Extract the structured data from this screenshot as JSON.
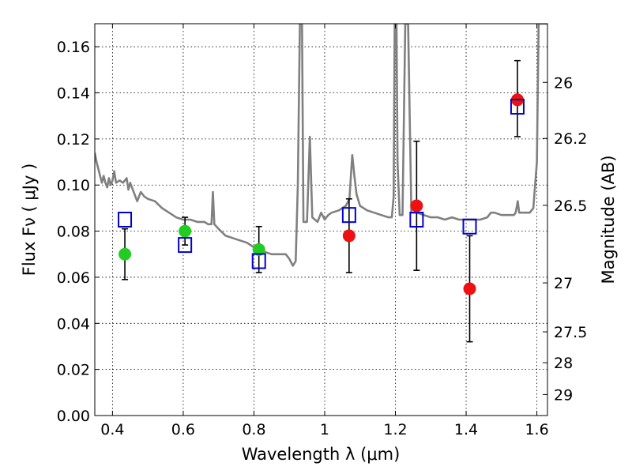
{
  "chart_data": {
    "type": "scatter",
    "xlabel": "Wavelength  λ (μm)",
    "ylabel": "Flux  Fν  ( μJy )",
    "y2label": "Magnitude (AB)",
    "xlim": [
      0.35,
      1.63
    ],
    "ylim": [
      0.0,
      0.17
    ],
    "x_ticks": [
      0.4,
      0.6,
      0.8,
      1.0,
      1.2,
      1.4,
      1.6
    ],
    "x_tick_labels": [
      "0.4",
      "0.6",
      "0.8",
      "1",
      "1.2",
      "1.4",
      "1.6"
    ],
    "y_ticks": [
      0.0,
      0.02,
      0.04,
      0.06,
      0.08,
      0.1,
      0.12,
      0.14,
      0.16
    ],
    "y_tick_labels": [
      "0.00",
      "0.02",
      "0.04",
      "0.06",
      "0.08",
      "0.10",
      "0.12",
      "0.14",
      "0.16"
    ],
    "mag_ticks": [
      26,
      26.2,
      26.5,
      27,
      27.5,
      28,
      29
    ],
    "mag_tick_labels": [
      "26",
      "26.2",
      "26.5",
      "27",
      "27.5",
      "28",
      "29"
    ],
    "grid": true,
    "colors": {
      "model": "#808080",
      "measured_green": "#22cc22",
      "measured_red": "#ee1111",
      "model_photometry": "#0000cc",
      "errorbar": "#000000"
    },
    "series": [
      {
        "kind": "points",
        "x": [
          0.435,
          0.605,
          0.814
        ],
        "y": [
          0.07,
          0.08,
          0.072
        ],
        "yerr_low": [
          0.011,
          0.006,
          0.01
        ],
        "yerr_high": [
          0.011,
          0.006,
          0.01
        ],
        "color_key": "measured_green"
      },
      {
        "kind": "points",
        "x": [
          1.069,
          1.26,
          1.41,
          1.545
        ],
        "y": [
          0.078,
          0.091,
          0.055,
          0.137
        ],
        "yerr_low": [
          0.016,
          0.028,
          0.023,
          0.016
        ],
        "yerr_high": [
          0.016,
          0.028,
          0.023,
          0.017
        ],
        "color_key": "measured_red"
      },
      {
        "kind": "open-squares",
        "x": [
          0.435,
          0.605,
          0.814,
          1.069,
          1.26,
          1.41,
          1.545
        ],
        "y": [
          0.085,
          0.074,
          0.067,
          0.087,
          0.085,
          0.082,
          0.134
        ],
        "color_key": "model_photometry"
      },
      {
        "kind": "line",
        "color_key": "model",
        "points": [
          [
            0.35,
            0.114
          ],
          [
            0.355,
            0.11
          ],
          [
            0.36,
            0.107
          ],
          [
            0.365,
            0.104
          ],
          [
            0.37,
            0.101
          ],
          [
            0.375,
            0.104
          ],
          [
            0.38,
            0.101
          ],
          [
            0.385,
            0.099
          ],
          [
            0.39,
            0.103
          ],
          [
            0.395,
            0.1
          ],
          [
            0.4,
            0.102
          ],
          [
            0.405,
            0.106
          ],
          [
            0.41,
            0.101
          ],
          [
            0.42,
            0.102
          ],
          [
            0.43,
            0.101
          ],
          [
            0.44,
            0.103
          ],
          [
            0.445,
            0.098
          ],
          [
            0.45,
            0.101
          ],
          [
            0.46,
            0.097
          ],
          [
            0.47,
            0.093
          ],
          [
            0.48,
            0.097
          ],
          [
            0.49,
            0.095
          ],
          [
            0.5,
            0.094
          ],
          [
            0.52,
            0.093
          ],
          [
            0.54,
            0.09
          ],
          [
            0.56,
            0.088
          ],
          [
            0.58,
            0.086
          ],
          [
            0.6,
            0.085
          ],
          [
            0.62,
            0.085
          ],
          [
            0.64,
            0.084
          ],
          [
            0.66,
            0.084
          ],
          [
            0.67,
            0.083
          ],
          [
            0.68,
            0.083
          ],
          [
            0.684,
            0.097
          ],
          [
            0.688,
            0.083
          ],
          [
            0.7,
            0.081
          ],
          [
            0.72,
            0.078
          ],
          [
            0.74,
            0.077
          ],
          [
            0.76,
            0.076
          ],
          [
            0.78,
            0.075
          ],
          [
            0.8,
            0.073
          ],
          [
            0.81,
            0.072
          ],
          [
            0.82,
            0.073
          ],
          [
            0.83,
            0.071
          ],
          [
            0.85,
            0.07
          ],
          [
            0.87,
            0.07
          ],
          [
            0.89,
            0.07
          ],
          [
            0.9,
            0.068
          ],
          [
            0.91,
            0.065
          ],
          [
            0.918,
            0.067
          ],
          [
            0.924,
            0.1
          ],
          [
            0.93,
            0.17
          ],
          [
            0.936,
            0.17
          ],
          [
            0.94,
            0.084
          ],
          [
            0.95,
            0.084
          ],
          [
            0.958,
            0.121
          ],
          [
            0.965,
            0.086
          ],
          [
            0.98,
            0.084
          ],
          [
            0.99,
            0.088
          ],
          [
            1.0,
            0.085
          ],
          [
            1.01,
            0.087
          ],
          [
            1.02,
            0.088
          ],
          [
            1.04,
            0.089
          ],
          [
            1.06,
            0.091
          ],
          [
            1.07,
            0.094
          ],
          [
            1.078,
            0.113
          ],
          [
            1.084,
            0.104
          ],
          [
            1.09,
            0.096
          ],
          [
            1.1,
            0.091
          ],
          [
            1.12,
            0.089
          ],
          [
            1.14,
            0.088
          ],
          [
            1.16,
            0.087
          ],
          [
            1.18,
            0.086
          ],
          [
            1.19,
            0.086
          ],
          [
            1.195,
            0.095
          ],
          [
            1.198,
            0.17
          ],
          [
            1.203,
            0.17
          ],
          [
            1.206,
            0.11
          ],
          [
            1.212,
            0.087
          ],
          [
            1.22,
            0.087
          ],
          [
            1.228,
            0.17
          ],
          [
            1.236,
            0.17
          ],
          [
            1.245,
            0.088
          ],
          [
            1.26,
            0.088
          ],
          [
            1.28,
            0.087
          ],
          [
            1.3,
            0.086
          ],
          [
            1.32,
            0.086
          ],
          [
            1.34,
            0.085
          ],
          [
            1.36,
            0.086
          ],
          [
            1.38,
            0.085
          ],
          [
            1.4,
            0.085
          ],
          [
            1.42,
            0.085
          ],
          [
            1.44,
            0.085
          ],
          [
            1.46,
            0.086
          ],
          [
            1.47,
            0.088
          ],
          [
            1.48,
            0.088
          ],
          [
            1.5,
            0.087
          ],
          [
            1.52,
            0.087
          ],
          [
            1.535,
            0.087
          ],
          [
            1.54,
            0.088
          ],
          [
            1.546,
            0.093
          ],
          [
            1.55,
            0.088
          ],
          [
            1.56,
            0.088
          ],
          [
            1.58,
            0.088
          ],
          [
            1.59,
            0.09
          ],
          [
            1.6,
            0.11
          ],
          [
            1.605,
            0.17
          ],
          [
            1.63,
            0.17
          ]
        ]
      }
    ]
  }
}
